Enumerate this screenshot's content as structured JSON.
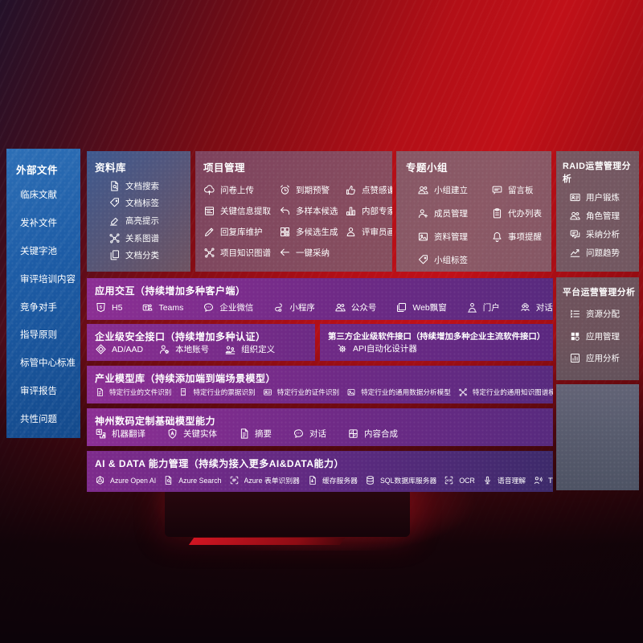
{
  "colors": {
    "background_red": "#b30f17",
    "sidebar_blue": "#1d5ca6",
    "panel_purple": "#7c2d8a",
    "panel_grey": "#6e6a78",
    "reserved_slate": "#5b7187"
  },
  "sidebar": {
    "title": "外部文件",
    "items": [
      {
        "label": "临床文献",
        "name": "clinical-literature"
      },
      {
        "label": "发补文件",
        "name": "supplement-files"
      },
      {
        "label": "关键字池",
        "name": "keyword-pool"
      },
      {
        "label": "审评培训内容",
        "name": "review-training-content"
      },
      {
        "label": "竞争对手",
        "name": "competitors"
      },
      {
        "label": "指导原则",
        "name": "guidelines"
      },
      {
        "label": "标管中心标准",
        "name": "cde-center-standards"
      },
      {
        "label": "审评报告",
        "name": "review-reports"
      },
      {
        "label": "共性问题",
        "name": "common-issues"
      }
    ]
  },
  "library": {
    "title": "资料库",
    "items": [
      {
        "label": "文档搜索",
        "icon": "doc-search",
        "name": "doc-search"
      },
      {
        "label": "文档标签",
        "icon": "tag",
        "name": "doc-tags"
      },
      {
        "label": "高亮提示",
        "icon": "highlighter",
        "name": "highlight-tips"
      },
      {
        "label": "关系图谱",
        "icon": "graph",
        "name": "relation-graph"
      },
      {
        "label": "文档分类",
        "icon": "doc-copy",
        "name": "doc-classification"
      }
    ]
  },
  "project": {
    "title": "项目管理",
    "items": [
      {
        "label": "问卷上传",
        "icon": "cloud-upload",
        "name": "questionnaire-upload"
      },
      {
        "label": "到期预警",
        "icon": "alarm",
        "name": "due-warning"
      },
      {
        "label": "点赞感谢",
        "icon": "thumb-up",
        "name": "like-thanks"
      },
      {
        "label": "关键信息提取",
        "icon": "extract",
        "name": "key-info-extraction"
      },
      {
        "label": "多样本候选",
        "icon": "reply",
        "name": "multi-sample-candidates"
      },
      {
        "label": "内部专家排名",
        "icon": "podium",
        "name": "internal-expert-ranking"
      },
      {
        "label": "回复库维护",
        "icon": "pencil",
        "name": "reply-library-maintenance"
      },
      {
        "label": "多候选生成",
        "icon": "grid-plus",
        "name": "multi-candidate-generation"
      },
      {
        "label": "评审员画像",
        "icon": "person",
        "name": "reviewer-profile"
      },
      {
        "label": "项目知识图谱",
        "icon": "graph",
        "name": "project-knowledge-graph"
      },
      {
        "label": "一键采纳",
        "icon": "arrow-left",
        "name": "one-click-adopt"
      }
    ]
  },
  "group": {
    "title": "专题小组",
    "items": [
      {
        "label": "小组建立",
        "icon": "group",
        "name": "group-creation"
      },
      {
        "label": "留言板",
        "icon": "bbs",
        "name": "message-board"
      },
      {
        "label": "成员管理",
        "icon": "person-add",
        "name": "member-management"
      },
      {
        "label": "代办列表",
        "icon": "clipboard",
        "name": "todo-list"
      },
      {
        "label": "资料管理",
        "icon": "image",
        "name": "material-management"
      },
      {
        "label": "事项提醒",
        "icon": "bell",
        "name": "matter-reminder"
      },
      {
        "label": "小组标签",
        "icon": "tag",
        "name": "group-tags"
      }
    ]
  },
  "raid": {
    "title": "RAID运营管理分析",
    "items": [
      {
        "label": "用户锻炼",
        "icon": "id-card",
        "name": "user-training"
      },
      {
        "label": "角色管理",
        "icon": "group",
        "name": "role-management"
      },
      {
        "label": "采纳分析",
        "icon": "chat-qa",
        "name": "adoption-analysis"
      },
      {
        "label": "问题趋势",
        "icon": "trend",
        "name": "issue-trend"
      }
    ]
  },
  "platform": {
    "title": "平台运营管理分析",
    "items": [
      {
        "label": "资源分配",
        "icon": "list",
        "name": "resource-allocation"
      },
      {
        "label": "应用管理",
        "icon": "app-grid",
        "name": "app-management"
      },
      {
        "label": "应用分析",
        "icon": "chart-box",
        "name": "app-analysis"
      }
    ]
  },
  "interact": {
    "title": "应用交互（持续增加多种客户端）",
    "items": [
      {
        "label": "H5",
        "icon": "h5",
        "name": "h5-client"
      },
      {
        "label": "Teams",
        "icon": "teams",
        "name": "teams-client"
      },
      {
        "label": "企业微信",
        "icon": "chat",
        "name": "wecom-client"
      },
      {
        "label": "小程序",
        "icon": "s-curve",
        "name": "mini-program-client"
      },
      {
        "label": "公众号",
        "icon": "group",
        "name": "official-account-client"
      },
      {
        "label": "Web飘窗",
        "icon": "window",
        "name": "web-popup-client"
      },
      {
        "label": "门户",
        "icon": "portal-person",
        "name": "portal-client"
      },
      {
        "label": "对话",
        "icon": "dialog-people",
        "name": "dialog-client"
      }
    ]
  },
  "security": {
    "title": "企业级安全接口（持续增加多种认证）",
    "items": [
      {
        "label": "AD/AAD",
        "icon": "diamond",
        "name": "ad-aad-auth"
      },
      {
        "label": "本地账号",
        "icon": "person-gear",
        "name": "local-account-auth"
      },
      {
        "label": "组织定义",
        "icon": "org-people",
        "name": "org-definition"
      }
    ]
  },
  "thirdparty": {
    "title": "第三方企业级软件接口（持续增加多种企业主流软件接口）",
    "items": [
      {
        "label": "API自动化设计器",
        "icon": "api-gear",
        "name": "api-auto-designer"
      }
    ]
  },
  "models": {
    "title": "产业模型库（持续添加端到端场景模型）",
    "items": [
      {
        "label": "特定行业的文件识别",
        "icon": "summary-doc",
        "name": "industry-file-recognition"
      },
      {
        "label": "特定行业的票据识别",
        "icon": "receipt",
        "name": "industry-receipt-recognition"
      },
      {
        "label": "特定行业的证件识别",
        "icon": "id-card",
        "name": "industry-id-recognition"
      },
      {
        "label": "特定行业的通用数据分析模型",
        "icon": "image",
        "name": "industry-data-analysis-model"
      },
      {
        "label": "特定行业的通用知识图谱模型",
        "icon": "graph",
        "name": "industry-knowledge-graph-model"
      }
    ]
  },
  "base_models": {
    "title": "神州数码定制基础模型能力",
    "items": [
      {
        "label": "机器翻译",
        "icon": "translate",
        "name": "machine-translation"
      },
      {
        "label": "关键实体",
        "icon": "shield-a",
        "name": "key-entity"
      },
      {
        "label": "摘要",
        "icon": "summary-doc",
        "name": "summary"
      },
      {
        "label": "对话",
        "icon": "chat",
        "name": "dialog-capability"
      },
      {
        "label": "内容合成",
        "icon": "content-grid",
        "name": "content-synthesis"
      }
    ]
  },
  "ai_data": {
    "title": "AI & DATA 能力管理（持续为接入更多AI&DATA能力）",
    "items": [
      {
        "label": "Azure Open AI",
        "icon": "openai",
        "name": "azure-open-ai"
      },
      {
        "label": "Azure Search",
        "icon": "doc-search",
        "name": "azure-search"
      },
      {
        "label": "Azure 表单识别器",
        "icon": "brackets",
        "name": "azure-form-recognizer"
      },
      {
        "label": "缓存服务器",
        "icon": "server-down",
        "name": "cache-server"
      },
      {
        "label": "SQL数据库服务器",
        "icon": "database",
        "name": "sql-db-server"
      },
      {
        "label": "OCR",
        "icon": "ocr",
        "name": "ocr"
      },
      {
        "label": "语音理解",
        "icon": "mic",
        "name": "speech-understanding"
      },
      {
        "label": "TTS",
        "icon": "person-sound",
        "name": "tts"
      }
    ]
  }
}
